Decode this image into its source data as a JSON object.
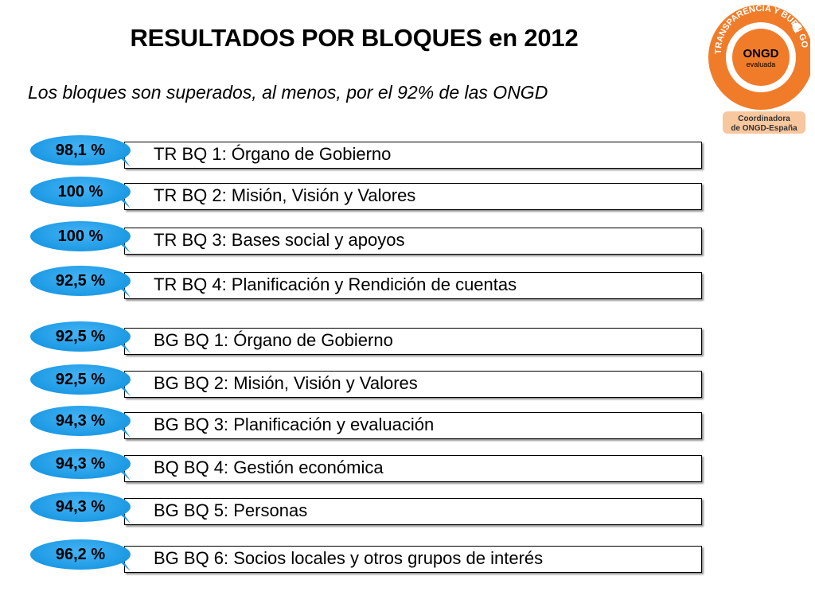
{
  "title": "RESULTADOS POR BLOQUES en 2012",
  "subtitle": "Los bloques son superados, al menos, por el 92% de las ONGD",
  "logo": {
    "ring_text": "TRANSPARENCIA Y BUEN GOBIERNO",
    "center_main": "ONGD",
    "center_sub": "evaluada",
    "org_line1": "Coordinadora",
    "org_line2": "de ONGD-España",
    "color": "#f07c2a"
  },
  "accent_color": "#1c9ae4",
  "blocks": [
    {
      "percent": "98,1 %",
      "label": "TR BQ 1: Órgano de Gobierno"
    },
    {
      "percent": "100 %",
      "label": "TR BQ 2: Misión, Visión y Valores"
    },
    {
      "percent": "100 %",
      "label": "TR BQ 3: Bases social y apoyos"
    },
    {
      "percent": "92,5 %",
      "label": "TR BQ 4: Planificación y Rendición de cuentas"
    },
    {
      "percent": "92,5 %",
      "label": "BG BQ 1: Órgano de Gobierno"
    },
    {
      "percent": "92,5 %",
      "label": "BG BQ 2: Misión, Visión y Valores"
    },
    {
      "percent": "94,3 %",
      "label": "BG BQ 3: Planificación y evaluación"
    },
    {
      "percent": "94,3 %",
      "label": "BQ BQ 4: Gestión económica"
    },
    {
      "percent": "94,3 %",
      "label": "BG BQ 5: Personas"
    },
    {
      "percent": "96,2 %",
      "label": "BG BQ 6: Socios locales y otros grupos de interés"
    }
  ]
}
